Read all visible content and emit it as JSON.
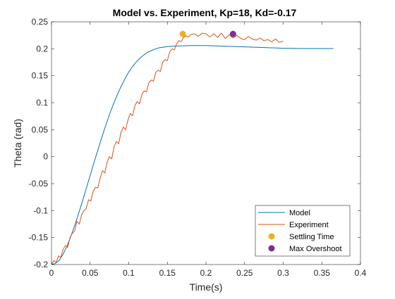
{
  "chart_data": {
    "type": "line",
    "title": "Model vs. Experiment, Kp=18, Kd=-0.17",
    "xlabel": "Time(s)",
    "ylabel": "Theta (rad)",
    "xlim": [
      0,
      0.4
    ],
    "ylim": [
      -0.2,
      0.25
    ],
    "xticks": [
      "0",
      "0.05",
      "0.1",
      "0.15",
      "0.2",
      "0.25",
      "0.3",
      "0.35",
      "0.4"
    ],
    "yticks": [
      "-0.2",
      "-0.15",
      "-0.1",
      "-0.05",
      "0",
      "0.05",
      "0.1",
      "0.15",
      "0.2",
      "0.25"
    ],
    "grid": false,
    "legend_position": "bottom-right",
    "series": [
      {
        "name": "Model",
        "color": "#0072BD",
        "style": "line",
        "x": [
          0,
          0.005,
          0.01,
          0.015,
          0.02,
          0.025,
          0.03,
          0.035,
          0.04,
          0.045,
          0.05,
          0.055,
          0.06,
          0.065,
          0.07,
          0.075,
          0.08,
          0.085,
          0.09,
          0.095,
          0.1,
          0.105,
          0.11,
          0.115,
          0.12,
          0.125,
          0.13,
          0.135,
          0.14,
          0.145,
          0.15,
          0.16,
          0.17,
          0.18,
          0.19,
          0.2,
          0.21,
          0.22,
          0.23,
          0.24,
          0.25,
          0.26,
          0.27,
          0.28,
          0.29,
          0.3,
          0.31,
          0.32,
          0.33,
          0.34,
          0.35,
          0.36,
          0.365
        ],
        "y": [
          -0.2,
          -0.198,
          -0.192,
          -0.181,
          -0.166,
          -0.148,
          -0.128,
          -0.106,
          -0.083,
          -0.059,
          -0.035,
          -0.011,
          0.012,
          0.035,
          0.057,
          0.078,
          0.097,
          0.114,
          0.13,
          0.144,
          0.157,
          0.167,
          0.176,
          0.183,
          0.189,
          0.194,
          0.197,
          0.2,
          0.202,
          0.203,
          0.204,
          0.205,
          0.2055,
          0.206,
          0.206,
          0.206,
          0.2055,
          0.205,
          0.2045,
          0.204,
          0.2035,
          0.203,
          0.2025,
          0.202,
          0.2015,
          0.201,
          0.201,
          0.2005,
          0.2005,
          0.2005,
          0.2005,
          0.2005,
          0.2005
        ]
      },
      {
        "name": "Experiment",
        "color": "#D95319",
        "style": "line",
        "x": [
          0,
          0.003,
          0.006,
          0.009,
          0.012,
          0.015,
          0.018,
          0.021,
          0.024,
          0.027,
          0.03,
          0.033,
          0.036,
          0.039,
          0.042,
          0.045,
          0.048,
          0.051,
          0.054,
          0.057,
          0.06,
          0.063,
          0.066,
          0.069,
          0.072,
          0.075,
          0.078,
          0.081,
          0.084,
          0.087,
          0.09,
          0.093,
          0.096,
          0.099,
          0.102,
          0.105,
          0.108,
          0.111,
          0.114,
          0.117,
          0.12,
          0.123,
          0.126,
          0.129,
          0.132,
          0.135,
          0.138,
          0.141,
          0.144,
          0.147,
          0.15,
          0.153,
          0.156,
          0.159,
          0.162,
          0.165,
          0.168,
          0.171,
          0.174,
          0.177,
          0.18,
          0.185,
          0.19,
          0.195,
          0.2,
          0.205,
          0.21,
          0.215,
          0.22,
          0.225,
          0.23,
          0.235,
          0.24,
          0.245,
          0.25,
          0.255,
          0.26,
          0.265,
          0.27,
          0.275,
          0.28,
          0.285,
          0.29,
          0.295,
          0.3
        ],
        "y": [
          -0.2,
          -0.193,
          -0.196,
          -0.184,
          -0.187,
          -0.172,
          -0.165,
          -0.168,
          -0.15,
          -0.142,
          -0.138,
          -0.12,
          -0.125,
          -0.108,
          -0.1,
          -0.096,
          -0.08,
          -0.082,
          -0.064,
          -0.057,
          -0.058,
          -0.04,
          -0.026,
          -0.03,
          -0.01,
          0.0,
          -0.004,
          0.018,
          0.028,
          0.024,
          0.045,
          0.055,
          0.05,
          0.068,
          0.08,
          0.076,
          0.095,
          0.102,
          0.098,
          0.115,
          0.122,
          0.12,
          0.137,
          0.142,
          0.14,
          0.156,
          0.16,
          0.158,
          0.175,
          0.18,
          0.178,
          0.194,
          0.2,
          0.198,
          0.209,
          0.215,
          0.213,
          0.221,
          0.224,
          0.222,
          0.226,
          0.228,
          0.223,
          0.229,
          0.228,
          0.222,
          0.228,
          0.221,
          0.229,
          0.219,
          0.226,
          0.22,
          0.225,
          0.219,
          0.217,
          0.223,
          0.218,
          0.216,
          0.22,
          0.215,
          0.217,
          0.213,
          0.218,
          0.212,
          0.214
        ]
      },
      {
        "name": "Settling Time",
        "color": "#EDB120",
        "style": "marker",
        "x": [
          0.17
        ],
        "y": [
          0.2275
        ]
      },
      {
        "name": "Max Overshoot",
        "color": "#7E2F8E",
        "style": "marker",
        "x": [
          0.235
        ],
        "y": [
          0.2275
        ]
      }
    ]
  }
}
